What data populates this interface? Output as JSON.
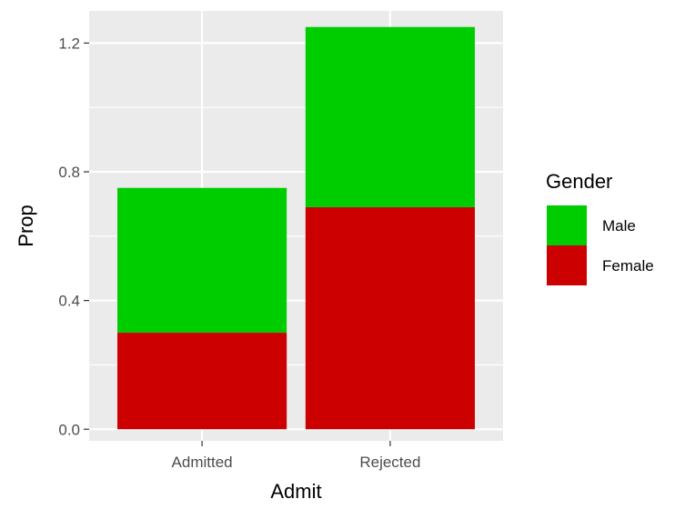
{
  "chart_data": {
    "type": "bar",
    "stacked": true,
    "title": "",
    "xlabel": "Admit",
    "ylabel": "Prop",
    "categories": [
      "Admitted",
      "Rejected"
    ],
    "series": [
      {
        "name": "Female",
        "values": [
          0.3,
          0.69
        ],
        "color": "#CD0000"
      },
      {
        "name": "Male",
        "values": [
          0.45,
          0.56
        ],
        "color": "#00CD00"
      }
    ],
    "ylim": [
      -0.036,
      1.3
    ],
    "yticks": [
      0.0,
      0.4,
      0.8,
      1.2
    ],
    "ytick_labels": [
      "0.0",
      "0.4",
      "0.8",
      "1.2"
    ],
    "grid": true,
    "panel_background": "#EBEBEB",
    "legend": {
      "title": "Gender",
      "position": "right",
      "entries": [
        {
          "label": "Male",
          "color": "#00CD00"
        },
        {
          "label": "Female",
          "color": "#CD0000"
        }
      ]
    }
  }
}
